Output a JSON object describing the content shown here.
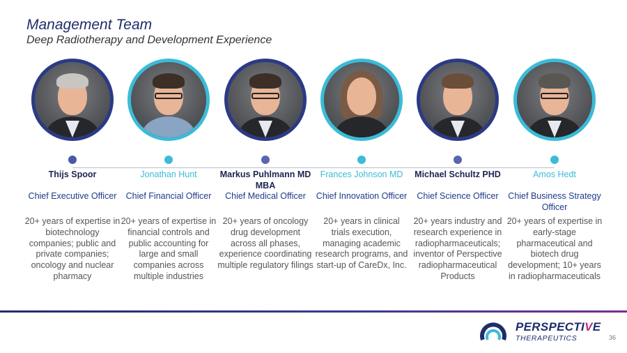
{
  "slide": {
    "title": "Management  Team",
    "subtitle": "Deep Radiotherapy and Development Experience",
    "page_number": "36"
  },
  "logo": {
    "name_part1": "PERSPECTI",
    "name_accent": "V",
    "name_part2": "E",
    "tagline": "THERAPEUTICS"
  },
  "team": [
    {
      "name": "Thijs Spoor",
      "role": "Chief Executive Officer",
      "description": "20+ years of expertise in biotechnology companies; public and private companies; oncology and nuclear pharmacy"
    },
    {
      "name": "Jonathan Hunt",
      "role": "Chief Financial Officer",
      "description": "20+ years of expertise in financial controls and public accounting for large and small companies across multiple industries"
    },
    {
      "name": "Markus Puhlmann MD MBA",
      "role": "Chief Medical Officer",
      "description": "20+ years of oncology drug development across all phases, experience coordinating multiple regulatory filings"
    },
    {
      "name": "Frances Johnson MD",
      "role": "Chief Innovation Officer",
      "description": "20+ years in clinical trials execution, managing academic research programs, and start-up of CareDx, Inc."
    },
    {
      "name": "Michael Schultz PHD",
      "role": "Chief Science Officer",
      "description": "20+ years industry and research experience in radiopharmaceuticals; inventor of Perspective radiopharmaceutical Products"
    },
    {
      "name": "Amos Hedt",
      "role": "Chief Business Strategy Officer",
      "description": "20+ years of expertise in early-stage pharmaceutical and biotech drug development; 10+ years in radiopharmaceuticals"
    }
  ],
  "colors": {
    "navy": "#1f2d6b",
    "cyan": "#3bbbd8",
    "accent": "#b8307f"
  }
}
